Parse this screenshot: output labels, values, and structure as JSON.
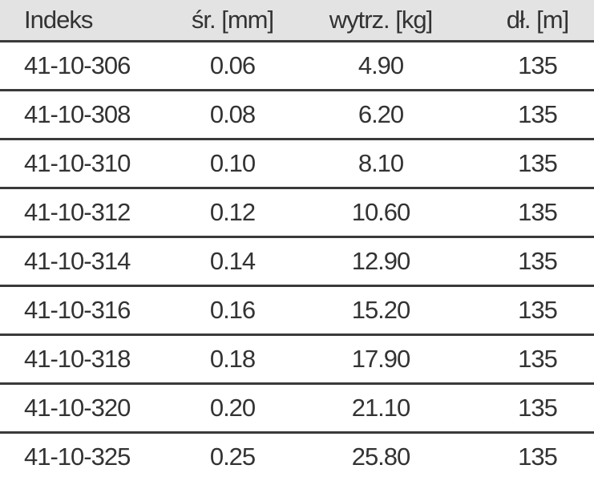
{
  "table": {
    "header": [
      "Indeks",
      "śr. [mm]",
      "wytrz. [kg]",
      "dł. [m]"
    ],
    "rows": [
      [
        "41-10-306",
        "0.06",
        "4.90",
        "135"
      ],
      [
        "41-10-308",
        "0.08",
        "6.20",
        "135"
      ],
      [
        "41-10-310",
        "0.10",
        "8.10",
        "135"
      ],
      [
        "41-10-312",
        "0.12",
        "10.60",
        "135"
      ],
      [
        "41-10-314",
        "0.14",
        "12.90",
        "135"
      ],
      [
        "41-10-316",
        "0.16",
        "15.20",
        "135"
      ],
      [
        "41-10-318",
        "0.18",
        "17.90",
        "135"
      ],
      [
        "41-10-320",
        "0.20",
        "21.10",
        "135"
      ],
      [
        "41-10-325",
        "0.25",
        "25.80",
        "135"
      ]
    ]
  }
}
